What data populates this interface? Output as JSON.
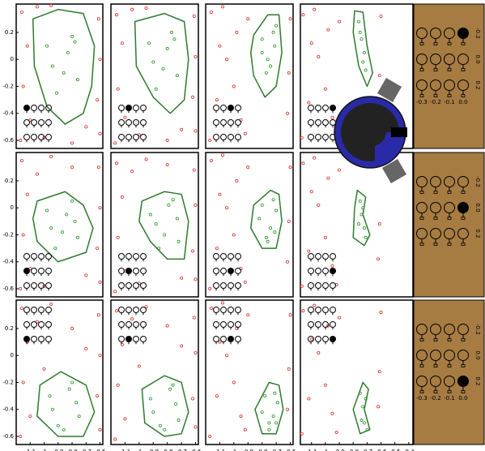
{
  "chart_data": [
    {
      "type": "scatter",
      "xlim": [
        -1.2,
        -0.58
      ],
      "ylim": [
        -0.66,
        0.41
      ],
      "yticks": [
        0.2,
        0,
        -0.2,
        -0.4,
        -0.6
      ],
      "selected": [
        0,
        0
      ],
      "boundary": {
        "color": "#2d7a2d",
        "x": [
          -1.08,
          -0.9,
          -0.72,
          -0.64,
          -0.66,
          -0.72,
          -0.85,
          -0.98,
          -1.07
        ],
        "y": [
          0.3,
          0.37,
          0.34,
          0.1,
          -0.2,
          -0.4,
          -0.48,
          -0.35,
          -0.05
        ]
      },
      "inside": {
        "color": "#2a9a2a",
        "x": [
          -0.98,
          -0.91,
          -0.83,
          -0.76,
          -0.94,
          -0.8,
          -0.86,
          -0.78
        ],
        "y": [
          0.1,
          -0.25,
          0.05,
          -0.15,
          -0.05,
          0.17,
          -0.1,
          0.13
        ]
      },
      "outside": {
        "color": "#e03030",
        "x": [
          -1.16,
          -1.12,
          -1.15,
          -1.1,
          -0.61,
          -0.6,
          -0.62,
          -1.0,
          -0.8,
          -0.95,
          -1.17,
          -0.6,
          -0.7,
          -1.05
        ],
        "y": [
          0.35,
          0.1,
          -0.2,
          -0.45,
          0.3,
          0.0,
          -0.3,
          -0.58,
          -0.62,
          0.4,
          -0.6,
          -0.55,
          -0.5,
          0.39
        ]
      }
    },
    {
      "type": "scatter",
      "xlim": [
        -1.2,
        -0.58
      ],
      "ylim": [
        -0.66,
        0.41
      ],
      "selected": [
        0,
        1
      ],
      "boundary": {
        "color": "#2d7a2d",
        "x": [
          -1.03,
          -0.82,
          -0.68,
          -0.65,
          -0.68,
          -0.78,
          -0.9,
          -1.02
        ],
        "y": [
          0.28,
          0.34,
          0.28,
          0.0,
          -0.3,
          -0.4,
          -0.28,
          -0.05
        ]
      },
      "inside": {
        "color": "#2a9a2a",
        "x": [
          -0.93,
          -0.88,
          -0.8,
          -0.73,
          -0.9,
          -0.77,
          -0.83,
          -0.75
        ],
        "y": [
          0.12,
          -0.22,
          0.08,
          -0.12,
          -0.02,
          0.2,
          -0.07,
          0.15
        ]
      },
      "outside": {
        "color": "#e03030",
        "x": [
          -1.16,
          -1.12,
          -1.15,
          -1.1,
          -0.61,
          -0.6,
          -0.62,
          -1.0,
          -0.8,
          -0.95,
          -1.17,
          -0.6,
          -0.7,
          -1.05
        ],
        "y": [
          0.33,
          0.12,
          -0.22,
          -0.43,
          0.32,
          0.02,
          -0.28,
          -0.56,
          -0.6,
          0.38,
          -0.62,
          -0.53,
          -0.52,
          0.37
        ]
      }
    },
    {
      "type": "scatter",
      "xlim": [
        -1.2,
        -0.58
      ],
      "ylim": [
        -0.66,
        0.41
      ],
      "selected": [
        0,
        2
      ],
      "boundary": {
        "color": "#2d7a2d",
        "x": [
          -0.86,
          -0.76,
          -0.68,
          -0.66,
          -0.7,
          -0.78,
          -0.86,
          -0.88
        ],
        "y": [
          0.18,
          0.33,
          0.33,
          0.05,
          -0.2,
          -0.28,
          -0.12,
          0.05
        ]
      },
      "inside": {
        "color": "#2a9a2a",
        "x": [
          -0.8,
          -0.77,
          -0.72,
          -0.74,
          -0.8,
          -0.7,
          -0.76,
          -0.71
        ],
        "y": [
          0.15,
          -0.1,
          0.2,
          -0.05,
          0.05,
          0.25,
          0.0,
          0.1
        ]
      },
      "outside": {
        "color": "#e03030",
        "x": [
          -1.16,
          -1.1,
          -1.0,
          -0.95,
          -0.9,
          -1.05,
          -1.12,
          -0.6,
          -0.62,
          -0.98,
          -1.17,
          -0.92,
          -0.61,
          -1.08
        ],
        "y": [
          0.35,
          0.1,
          -0.2,
          -0.45,
          0.3,
          0.0,
          -0.3,
          0.3,
          -0.4,
          0.2,
          -0.6,
          -0.55,
          -0.1,
          0.39
        ]
      }
    },
    {
      "type": "scatter",
      "xlim": [
        -1.18,
        -0.37
      ],
      "ylim": [
        -0.66,
        0.41
      ],
      "selected": [
        0,
        3
      ],
      "boundary": {
        "color": "#2d7a2d",
        "x": [
          -0.79,
          -0.73,
          -0.7,
          -0.66,
          -0.7,
          -0.76,
          -0.8
        ],
        "y": [
          0.36,
          0.35,
          0.1,
          -0.1,
          -0.2,
          -0.05,
          0.2
        ]
      },
      "inside": {
        "color": "#2a9a2a",
        "x": [
          -0.76,
          -0.74,
          -0.72,
          -0.71,
          -0.75,
          -0.73
        ],
        "y": [
          0.28,
          0.15,
          0.05,
          -0.08,
          0.2,
          -0.02
        ]
      },
      "outside": {
        "color": "#e03030",
        "x": [
          -1.16,
          -1.1,
          -1.0,
          -0.95,
          -0.9,
          -1.05,
          -1.12,
          -0.6,
          -0.62,
          -0.98,
          -1.17,
          -0.92,
          -0.61,
          -1.08
        ],
        "y": [
          0.33,
          0.12,
          -0.22,
          -0.43,
          0.28,
          0.02,
          -0.32,
          0.32,
          -0.38,
          0.22,
          -0.58,
          -0.57,
          -0.12,
          0.37
        ]
      }
    },
    {
      "type": "scatter",
      "xlim": [
        -1.2,
        -0.58
      ],
      "ylim": [
        -0.66,
        0.41
      ],
      "yticks": [
        0.2,
        0,
        -0.2,
        -0.4,
        -0.6
      ],
      "selected": [
        1,
        0
      ],
      "boundary": {
        "color": "#2d7a2d",
        "x": [
          -1.05,
          -0.85,
          -0.72,
          -0.65,
          -0.7,
          -0.9,
          -1.05,
          -1.08
        ],
        "y": [
          0.05,
          0.12,
          0.02,
          -0.15,
          -0.33,
          -0.4,
          -0.25,
          -0.08
        ]
      },
      "inside": {
        "color": "#2a9a2a",
        "x": [
          -0.98,
          -0.92,
          -0.84,
          -0.76,
          -0.95,
          -0.8,
          -0.87,
          -0.78
        ],
        "y": [
          -0.02,
          -0.3,
          -0.05,
          -0.22,
          -0.15,
          0.05,
          -0.18,
          -0.1
        ]
      },
      "outside": {
        "color": "#e03030",
        "x": [
          -1.16,
          -1.12,
          -1.15,
          -1.1,
          -0.61,
          -0.6,
          -0.62,
          -1.0,
          -0.8,
          -0.95,
          -1.17,
          -0.6,
          -0.7,
          -1.05
        ],
        "y": [
          0.35,
          0.1,
          -0.2,
          -0.45,
          0.3,
          0.0,
          -0.3,
          -0.58,
          0.3,
          0.38,
          -0.6,
          -0.55,
          -0.5,
          0.25
        ]
      }
    },
    {
      "type": "scatter",
      "xlim": [
        -1.2,
        -0.58
      ],
      "ylim": [
        -0.66,
        0.41
      ],
      "selected": [
        1,
        1
      ],
      "boundary": {
        "color": "#2d7a2d",
        "x": [
          -0.98,
          -0.82,
          -0.7,
          -0.65,
          -0.68,
          -0.8,
          -0.92,
          -1.0
        ],
        "y": [
          0.05,
          0.12,
          0.1,
          -0.1,
          -0.38,
          -0.38,
          -0.25,
          -0.1
        ]
      },
      "inside": {
        "color": "#2a9a2a",
        "x": [
          -0.92,
          -0.86,
          -0.79,
          -0.72,
          -0.88,
          -0.76,
          -0.82,
          -0.73
        ],
        "y": [
          -0.05,
          -0.3,
          0.02,
          -0.25,
          -0.12,
          0.06,
          -0.2,
          -0.08
        ]
      },
      "outside": {
        "color": "#e03030",
        "x": [
          -1.16,
          -1.12,
          -1.15,
          -1.1,
          -0.61,
          -0.6,
          -0.62,
          -1.0,
          -0.8,
          -0.95,
          -1.17,
          -0.6,
          -0.7,
          -1.05
        ],
        "y": [
          0.33,
          0.08,
          -0.22,
          -0.47,
          0.28,
          0.02,
          -0.32,
          -0.56,
          0.32,
          0.36,
          -0.62,
          -0.53,
          -0.52,
          0.27
        ]
      }
    },
    {
      "type": "scatter",
      "xlim": [
        -1.2,
        -0.58
      ],
      "ylim": [
        -0.66,
        0.41
      ],
      "selected": [
        1,
        2
      ],
      "boundary": {
        "color": "#2d7a2d",
        "x": [
          -0.86,
          -0.74,
          -0.68,
          -0.66,
          -0.7,
          -0.8,
          -0.88
        ],
        "y": [
          0.02,
          0.13,
          0.1,
          -0.1,
          -0.3,
          -0.3,
          -0.15
        ]
      },
      "inside": {
        "color": "#2a9a2a",
        "x": [
          -0.8,
          -0.77,
          -0.72,
          -0.74,
          -0.82,
          -0.7,
          -0.76,
          -0.71
        ],
        "y": [
          0.02,
          -0.22,
          0.06,
          -0.15,
          -0.08,
          -0.02,
          -0.25,
          -0.18
        ]
      },
      "outside": {
        "color": "#e03030",
        "x": [
          -1.16,
          -1.1,
          -1.0,
          -0.95,
          -0.9,
          -1.05,
          -1.12,
          -0.6,
          -0.62,
          -0.98,
          -1.17,
          -0.92,
          -0.61,
          -1.08
        ],
        "y": [
          0.35,
          0.1,
          -0.2,
          -0.45,
          0.3,
          0.0,
          -0.3,
          0.3,
          -0.4,
          0.2,
          -0.6,
          -0.55,
          -0.1,
          0.39
        ]
      }
    },
    {
      "type": "scatter",
      "xlim": [
        -1.18,
        -0.37
      ],
      "ylim": [
        -0.66,
        0.41
      ],
      "selected": [
        1,
        3
      ],
      "boundary": {
        "color": "#2d7a2d",
        "x": [
          -0.77,
          -0.71,
          -0.73,
          -0.68,
          -0.72,
          -0.8,
          -0.79
        ],
        "y": [
          0.13,
          0.08,
          -0.05,
          -0.2,
          -0.28,
          -0.22,
          0.0
        ]
      },
      "inside": {
        "color": "#2a9a2a",
        "x": [
          -0.75,
          -0.74,
          -0.72,
          -0.71,
          -0.76,
          -0.73
        ],
        "y": [
          0.05,
          -0.05,
          -0.15,
          -0.22,
          -0.12,
          0.0
        ]
      },
      "outside": {
        "color": "#e03030",
        "x": [
          -1.16,
          -1.1,
          -1.0,
          -0.95,
          -0.9,
          -1.05,
          -1.12,
          -0.6,
          -0.62,
          -0.98,
          -1.17,
          -0.92,
          -0.61,
          -1.08
        ],
        "y": [
          0.33,
          0.12,
          -0.22,
          -0.43,
          0.28,
          0.02,
          -0.32,
          0.32,
          -0.38,
          0.22,
          -0.58,
          -0.57,
          -0.12,
          0.37
        ]
      }
    },
    {
      "type": "scatter",
      "xlim": [
        -1.2,
        -0.58
      ],
      "ylim": [
        -0.66,
        0.41
      ],
      "xticks": [
        -1.1,
        -1,
        -0.9,
        -0.8,
        -0.7,
        -0.6
      ],
      "yticks": [
        0.2,
        0,
        -0.2,
        -0.4,
        -0.6
      ],
      "selected": [
        2,
        0
      ],
      "boundary": {
        "color": "#2d7a2d",
        "x": [
          -1.03,
          -0.88,
          -0.7,
          -0.64,
          -0.72,
          -0.9,
          -1.05
        ],
        "y": [
          -0.22,
          -0.12,
          -0.22,
          -0.42,
          -0.6,
          -0.6,
          -0.45
        ]
      },
      "inside": {
        "color": "#2a9a2a",
        "x": [
          -0.96,
          -0.9,
          -0.82,
          -0.75,
          -0.94,
          -0.8,
          -0.86,
          -0.77
        ],
        "y": [
          -0.3,
          -0.52,
          -0.25,
          -0.45,
          -0.4,
          -0.2,
          -0.55,
          -0.35
        ]
      },
      "outside": {
        "color": "#e03030",
        "x": [
          -1.16,
          -1.12,
          -1.15,
          -1.1,
          -0.61,
          -0.6,
          -0.62,
          -1.0,
          -0.8,
          -0.95,
          -1.17,
          -0.6,
          -0.7,
          -1.05
        ],
        "y": [
          0.35,
          0.1,
          -0.2,
          -0.45,
          0.3,
          0.0,
          -0.3,
          -0.1,
          0.2,
          0.38,
          -0.6,
          -0.55,
          0.05,
          0.25
        ]
      }
    },
    {
      "type": "scatter",
      "xlim": [
        -1.2,
        -0.58
      ],
      "ylim": [
        -0.66,
        0.41
      ],
      "xticks": [
        -1.1,
        -1,
        -0.9,
        -0.8,
        -0.7,
        -0.6
      ],
      "selected": [
        2,
        1
      ],
      "boundary": {
        "color": "#2d7a2d",
        "x": [
          -0.98,
          -0.82,
          -0.7,
          -0.65,
          -0.7,
          -0.82,
          -0.96
        ],
        "y": [
          -0.25,
          -0.15,
          -0.2,
          -0.42,
          -0.58,
          -0.6,
          -0.5
        ]
      },
      "inside": {
        "color": "#2a9a2a",
        "x": [
          -0.92,
          -0.85,
          -0.78,
          -0.72,
          -0.9,
          -0.76,
          -0.82,
          -0.74
        ],
        "y": [
          -0.32,
          -0.52,
          -0.25,
          -0.48,
          -0.42,
          -0.22,
          -0.55,
          -0.36
        ]
      },
      "outside": {
        "color": "#e03030",
        "x": [
          -1.16,
          -1.12,
          -1.15,
          -1.1,
          -0.61,
          -0.6,
          -0.62,
          -1.0,
          -0.8,
          -0.95,
          -1.17,
          -0.6,
          -0.7,
          -1.05
        ],
        "y": [
          0.33,
          0.08,
          -0.22,
          -0.47,
          0.28,
          0.02,
          -0.32,
          -0.08,
          0.22,
          0.36,
          -0.62,
          -0.53,
          0.07,
          0.27
        ]
      }
    },
    {
      "type": "scatter",
      "xlim": [
        -1.2,
        -0.58
      ],
      "ylim": [
        -0.66,
        0.41
      ],
      "xticks": [
        -1.1,
        -1,
        -0.9,
        -0.8,
        -0.7,
        -0.6
      ],
      "selected": [
        2,
        2
      ],
      "boundary": {
        "color": "#2d7a2d",
        "x": [
          -0.85,
          -0.75,
          -0.68,
          -0.65,
          -0.7,
          -0.8
        ],
        "y": [
          -0.4,
          -0.2,
          -0.22,
          -0.4,
          -0.58,
          -0.58
        ]
      },
      "inside": {
        "color": "#2a9a2a",
        "x": [
          -0.78,
          -0.75,
          -0.71,
          -0.72,
          -0.8,
          -0.69,
          -0.75,
          -0.7
        ],
        "y": [
          -0.3,
          -0.5,
          -0.28,
          -0.45,
          -0.42,
          -0.35,
          -0.55,
          -0.5
        ]
      },
      "outside": {
        "color": "#e03030",
        "x": [
          -1.16,
          -1.1,
          -1.0,
          -0.95,
          -0.9,
          -1.05,
          -1.12,
          -0.6,
          -0.62,
          -0.98,
          -1.17,
          -0.92,
          -0.61,
          -1.08
        ],
        "y": [
          0.35,
          0.1,
          -0.2,
          -0.45,
          0.3,
          0.0,
          -0.3,
          0.3,
          -0.4,
          0.2,
          -0.6,
          -0.55,
          -0.1,
          0.39
        ]
      }
    },
    {
      "type": "scatter",
      "xlim": [
        -1.18,
        -0.37
      ],
      "ylim": [
        -0.66,
        0.41
      ],
      "xticks": [
        -1.1,
        -1,
        -0.9,
        -0.8,
        -0.7,
        -0.6,
        -0.5,
        -0.4
      ],
      "selected": [
        2,
        3
      ],
      "boundary": {
        "color": "#2d7a2d",
        "x": [
          -0.8,
          -0.73,
          -0.69,
          -0.72,
          -0.68,
          -0.75
        ],
        "y": [
          -0.4,
          -0.2,
          -0.25,
          -0.4,
          -0.55,
          -0.58
        ]
      },
      "inside": {
        "color": "#2a9a2a",
        "x": [
          -0.75,
          -0.73,
          -0.71,
          -0.72,
          -0.74,
          -0.7
        ],
        "y": [
          -0.28,
          -0.38,
          -0.32,
          -0.5,
          -0.48,
          -0.55
        ]
      },
      "outside": {
        "color": "#e03030",
        "x": [
          -1.16,
          -1.1,
          -1.0,
          -0.95,
          -0.9,
          -1.05,
          -1.12,
          -0.6,
          -0.62,
          -0.98,
          -1.17,
          -0.92,
          -0.61,
          -1.08
        ],
        "y": [
          0.33,
          0.12,
          -0.22,
          -0.43,
          0.28,
          0.02,
          -0.32,
          0.32,
          -0.38,
          0.22,
          -0.58,
          -0.57,
          -0.12,
          0.37
        ]
      }
    }
  ],
  "key_panels": [
    {
      "selected": [
        0,
        3
      ],
      "row_labels": [
        "-0.2",
        "0.0",
        "0.2"
      ],
      "col_labels": [
        "-0.3",
        "-0.2",
        "-0.1",
        "0.0"
      ]
    },
    {
      "selected": [
        1,
        3
      ],
      "row_labels": [
        "-0.2",
        "0.0",
        "0.2"
      ]
    },
    {
      "selected": [
        2,
        3
      ],
      "row_labels": [
        "-0.2",
        "0.0",
        "0.2"
      ],
      "col_labels": [
        "-0.3",
        "-0.2",
        "-0.1",
        "0.0"
      ]
    }
  ]
}
